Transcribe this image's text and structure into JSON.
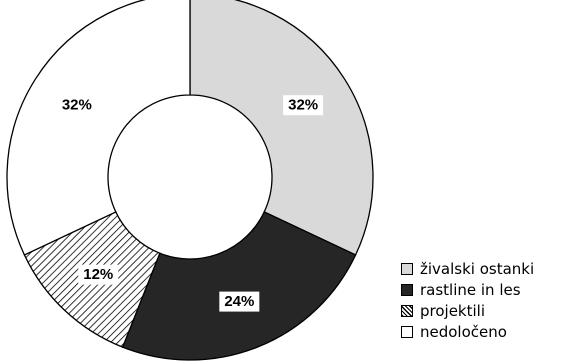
{
  "chart_data": {
    "type": "pie",
    "variant": "donut",
    "title": "",
    "slices": [
      {
        "label": "živalski ostanki",
        "value": 32,
        "display": "32%",
        "color": "#d9d9d9",
        "pattern": "solid-light-gray"
      },
      {
        "label": "rastline in les",
        "value": 24,
        "display": "24%",
        "color": "#262626",
        "pattern": "solid-dark"
      },
      {
        "label": "projektili",
        "value": 12,
        "display": "12%",
        "color": "#ffffff",
        "pattern": "diagonal-hatch"
      },
      {
        "label": "nedoločeno",
        "value": 32,
        "display": "32%",
        "color": "#ffffff",
        "pattern": "none"
      }
    ],
    "start_angle": "12 o'clock",
    "direction": "clockwise",
    "legend_position": "bottom-right"
  }
}
